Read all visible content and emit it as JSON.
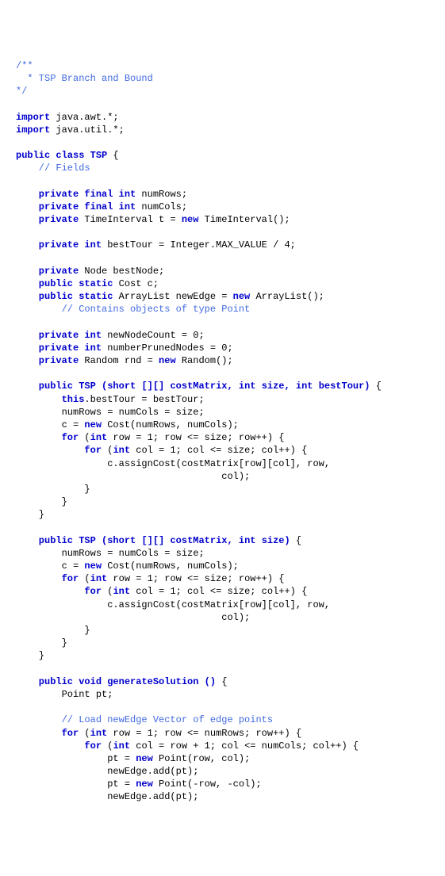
{
  "code": {
    "bg_color": "#ffffff",
    "font_family": "Courier New",
    "font_size_pt": 9,
    "comment_color": "#4169e1",
    "keyword_color": "#0000cd",
    "text_color": "#000000",
    "l01": "/**",
    "l02": "  * TSP Branch and Bound",
    "l03": "*/",
    "l04": "import",
    "l04b": " java.awt.*;",
    "l05": "import",
    "l05b": " java.util.*;",
    "l06": "public class TSP",
    "l06b": " {",
    "l07": "    // Fields",
    "l08a": "    private final int",
    "l08b": " numRows;",
    "l09a": "    private final int",
    "l09b": " numCols;",
    "l10a": "    private",
    "l10b": " TimeInterval t = ",
    "l10c": "new",
    "l10d": " TimeInterval();",
    "l11a": "    private int",
    "l11b": " bestTour = Integer.MAX_VALUE / 4;",
    "l12a": "    private",
    "l12b": " Node bestNode;",
    "l13a": "    public static",
    "l13b": " Cost c;",
    "l14a": "    public static",
    "l14b": " ArrayList newEdge = ",
    "l14c": "new",
    "l14d": " ArrayList();",
    "l15": "        // Contains objects of type Point",
    "l16a": "    private int",
    "l16b": " newNodeCount = 0;",
    "l17a": "    private int",
    "l17b": " numberPrunedNodes = 0;",
    "l18a": "    private",
    "l18b": " Random rnd = ",
    "l18c": "new",
    "l18d": " Random();",
    "l19a": "    public",
    "l19b": " TSP ",
    "l19c": "(short",
    "l19d": " [][] ",
    "l19e": "costMatrix, int size, int bestTour)",
    "l19f": " {",
    "l20a": "        this",
    "l20b": ".bestTour = bestTour;",
    "l21": "        numRows = numCols = size;",
    "l22a": "        c = ",
    "l22b": "new",
    "l22c": " Cost(numRows, numCols);",
    "l23a": "        for",
    "l23b": " (",
    "l23c": "int",
    "l23d": " row = 1; row <= size; row++) {",
    "l24a": "            for",
    "l24b": " (",
    "l24c": "int",
    "l24d": " col = 1; col <= size; col++) {",
    "l25": "                c.assignCost(costMatrix[row][col], row,",
    "l26": "                                    col);",
    "l27": "            }",
    "l28": "        }",
    "l29": "    }",
    "l30a": "    public",
    "l30b": " TSP ",
    "l30c": "(short",
    "l30d": " [][] ",
    "l30e": "costMatrix, int size)",
    "l30f": " {",
    "l31": "        numRows = numCols = size;",
    "l32a": "        c = ",
    "l32b": "new",
    "l32c": " Cost(numRows, numCols);",
    "l33a": "        for",
    "l33b": " (",
    "l33c": "int",
    "l33d": " row = 1; row <= size; row++) {",
    "l34a": "            for",
    "l34b": " (",
    "l34c": "int",
    "l34d": " col = 1; col <= size; col++) {",
    "l35": "                c.assignCost(costMatrix[row][col], row,",
    "l36": "                                    col);",
    "l37": "            }",
    "l38": "        }",
    "l39": "    }",
    "l40a": "    public void",
    "l40b": " generateSolution ",
    "l40c": "()",
    "l40d": " {",
    "l41": "        Point pt;",
    "l42": "        // Load newEdge Vector of edge points",
    "l43a": "        for",
    "l43b": " (",
    "l43c": "int",
    "l43d": " row = 1; row <= numRows; row++) {",
    "l44a": "            for",
    "l44b": " (",
    "l44c": "int",
    "l44d": " col = row + 1; col <= numCols; col++) {",
    "l45a": "                pt = ",
    "l45b": "new",
    "l45c": " Point(row, col);",
    "l46": "                newEdge.add(pt);",
    "l47a": "                pt = ",
    "l47b": "new",
    "l47c": " Point(-row, -col);",
    "l48": "                newEdge.add(pt);"
  }
}
